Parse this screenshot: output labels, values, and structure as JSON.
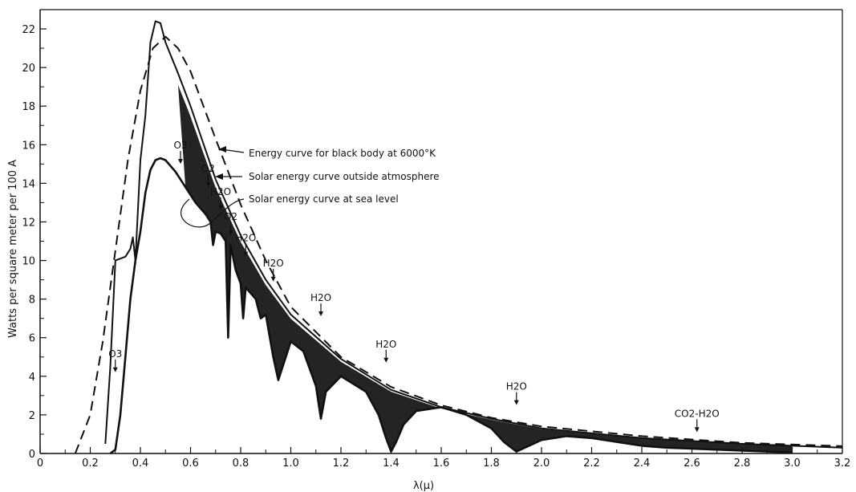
{
  "chart_data": {
    "type": "line",
    "xlabel": "λ(μ)",
    "ylabel": "Watts per square meter per 100 A",
    "xlim": [
      0,
      3.2
    ],
    "ylim": [
      0,
      23
    ],
    "x_ticks": [
      "0",
      "0.2",
      "0.4",
      "0.6",
      "0.8",
      "1.0",
      "1.2",
      "1.4",
      "1.6",
      "1.8",
      "2.0",
      "2.2",
      "2.4",
      "2.6",
      "2.8",
      "3.0",
      "3.2"
    ],
    "y_ticks": [
      "0",
      "2",
      "4",
      "6",
      "8",
      "10",
      "12",
      "14",
      "16",
      "18",
      "20",
      "22"
    ],
    "grid": false,
    "series": [
      {
        "name": "Energy curve for black body at 6000°K",
        "style": "dashed",
        "x": [
          0.14,
          0.2,
          0.25,
          0.3,
          0.35,
          0.4,
          0.45,
          0.5,
          0.55,
          0.6,
          0.7,
          0.8,
          0.9,
          1.0,
          1.2,
          1.4,
          1.6,
          1.8,
          2.0,
          2.4,
          2.8,
          3.2
        ],
        "y": [
          0,
          2.0,
          5.8,
          10.5,
          15.2,
          18.8,
          21.0,
          21.6,
          21.0,
          19.8,
          16.3,
          12.9,
          10.0,
          7.6,
          5.0,
          3.45,
          2.5,
          1.85,
          1.4,
          0.9,
          0.55,
          0.38
        ]
      },
      {
        "name": "Solar energy curve outside atmosphere",
        "style": "solid",
        "x": [
          0.26,
          0.28,
          0.3,
          0.32,
          0.34,
          0.36,
          0.37,
          0.38,
          0.4,
          0.42,
          0.44,
          0.46,
          0.48,
          0.5,
          0.55,
          0.6,
          0.7,
          0.8,
          0.9,
          1.0,
          1.2,
          1.4,
          1.6,
          1.8,
          2.0,
          2.4,
          2.8,
          3.2
        ],
        "y": [
          0.5,
          4.5,
          10.0,
          10.1,
          10.2,
          10.6,
          11.2,
          10.0,
          15.2,
          17.5,
          21.3,
          22.4,
          22.3,
          21.3,
          19.7,
          18.0,
          14.2,
          11.3,
          9.0,
          7.2,
          4.9,
          3.3,
          2.4,
          1.8,
          1.3,
          0.8,
          0.5,
          0.3
        ]
      },
      {
        "name": "Solar energy curve at sea level",
        "style": "solid-filled",
        "x": [
          0.28,
          0.3,
          0.32,
          0.34,
          0.36,
          0.38,
          0.4,
          0.42,
          0.44,
          0.46,
          0.48,
          0.5,
          0.54,
          0.58,
          0.62,
          0.66,
          0.68,
          0.69,
          0.7,
          0.72,
          0.74,
          0.75,
          0.76,
          0.78,
          0.8,
          0.81,
          0.82,
          0.86,
          0.88,
          0.9,
          0.93,
          0.95,
          1.0,
          1.05,
          1.1,
          1.12,
          1.14,
          1.2,
          1.25,
          1.3,
          1.35,
          1.38,
          1.4,
          1.42,
          1.45,
          1.5,
          1.6,
          1.7,
          1.8,
          1.85,
          1.9,
          1.95,
          2.0,
          2.1,
          2.2,
          2.3,
          2.4,
          2.5,
          2.6,
          2.7,
          2.8,
          2.9,
          3.0
        ],
        "y": [
          0,
          0.2,
          2.0,
          5.0,
          8.0,
          10.0,
          11.5,
          13.5,
          14.7,
          15.2,
          15.3,
          15.2,
          14.6,
          13.8,
          13.0,
          12.4,
          12.0,
          10.8,
          11.5,
          11.4,
          11.0,
          6.0,
          10.8,
          9.5,
          8.8,
          7.0,
          8.6,
          8.0,
          7.0,
          7.2,
          5.0,
          3.8,
          5.8,
          5.3,
          3.5,
          1.8,
          3.2,
          4.0,
          3.6,
          3.2,
          2.0,
          0.8,
          0.1,
          0.6,
          1.5,
          2.2,
          2.4,
          2.0,
          1.3,
          0.6,
          0.1,
          0.4,
          0.7,
          0.9,
          0.8,
          0.6,
          0.4,
          0.3,
          0.25,
          0.2,
          0.15,
          0.1,
          0.05
        ]
      }
    ],
    "annotations": [
      {
        "text": "O3",
        "x": 0.3,
        "y": 5.0
      },
      {
        "text": "O3",
        "x": 0.56,
        "y": 15.8
      },
      {
        "text": "O2",
        "x": 0.67,
        "y": 14.6
      },
      {
        "text": "H2O",
        "x": 0.72,
        "y": 13.4
      },
      {
        "text": "O2",
        "x": 0.76,
        "y": 12.1
      },
      {
        "text": "H2O",
        "x": 0.82,
        "y": 11.0
      },
      {
        "text": "H2O",
        "x": 0.93,
        "y": 9.7
      },
      {
        "text": "H2O",
        "x": 1.12,
        "y": 7.9
      },
      {
        "text": "H2O",
        "x": 1.38,
        "y": 5.5
      },
      {
        "text": "H2O",
        "x": 1.9,
        "y": 3.3
      },
      {
        "text": "CO2-H2O",
        "x": 2.62,
        "y": 1.9
      }
    ],
    "legend": "callouts-center-right"
  }
}
